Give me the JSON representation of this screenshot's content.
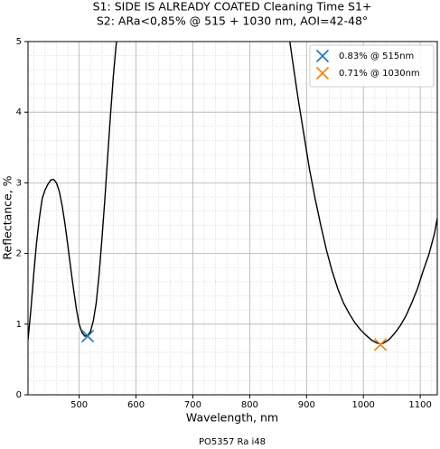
{
  "chart_data": {
    "type": "line",
    "title": "S1: SIDE IS ALREADY COATED      Cleaning Time S1+",
    "subtitle": "S2: ARa<0,85% @ 515 + 1030 nm, AOI=42-48°",
    "caption": "PO5357 Ra i48",
    "xlabel": "Wavelength, nm",
    "ylabel": "Reflectance, %",
    "xlim": [
      410,
      1130
    ],
    "ylim": [
      0,
      5
    ],
    "xticks": [
      500,
      600,
      700,
      800,
      900,
      1000,
      1100
    ],
    "yticks": [
      0,
      1,
      2,
      3,
      4,
      5
    ],
    "xminorticks": [
      420,
      440,
      460,
      480,
      520,
      540,
      560,
      580,
      620,
      640,
      660,
      680,
      720,
      740,
      760,
      780,
      820,
      840,
      860,
      880,
      920,
      940,
      960,
      980,
      1020,
      1040,
      1060,
      1080,
      1120
    ],
    "yminorticks": [
      0.2,
      0.4,
      0.6,
      0.8,
      1.2,
      1.4,
      1.6,
      1.8,
      2.2,
      2.4,
      2.6,
      2.8,
      3.2,
      3.4,
      3.6,
      3.8,
      4.2,
      4.4,
      4.6,
      4.8
    ],
    "grid": true,
    "legend": "upper right",
    "curve": {
      "color": "#000000",
      "x": [
        410,
        415,
        420,
        425,
        430,
        435,
        440,
        445,
        450,
        455,
        460,
        465,
        470,
        475,
        480,
        485,
        490,
        495,
        500,
        505,
        510,
        515,
        520,
        525,
        530,
        535,
        540,
        545,
        550,
        555,
        560,
        565,
        568,
        null,
        868,
        875,
        885,
        895,
        905,
        915,
        925,
        935,
        945,
        955,
        965,
        975,
        985,
        995,
        1005,
        1015,
        1025,
        1030,
        1035,
        1045,
        1055,
        1065,
        1075,
        1085,
        1095,
        1105,
        1115,
        1125,
        1130
      ],
      "values": [
        0.78,
        1.2,
        1.7,
        2.15,
        2.5,
        2.78,
        2.9,
        2.98,
        3.04,
        3.05,
        3.0,
        2.88,
        2.68,
        2.42,
        2.12,
        1.8,
        1.5,
        1.22,
        1.0,
        0.88,
        0.83,
        0.84,
        0.9,
        1.05,
        1.3,
        1.7,
        2.2,
        2.75,
        3.35,
        3.95,
        4.5,
        4.95,
        5.15,
        null,
        5.15,
        4.75,
        4.2,
        3.7,
        3.2,
        2.78,
        2.4,
        2.05,
        1.75,
        1.5,
        1.3,
        1.15,
        1.02,
        0.92,
        0.84,
        0.77,
        0.73,
        0.72,
        0.73,
        0.78,
        0.87,
        0.98,
        1.12,
        1.3,
        1.5,
        1.75,
        1.98,
        2.28,
        2.5
      ]
    },
    "series": [
      {
        "name": "0.83% @ 515nm",
        "color": "#1f77b4",
        "x": [
          515
        ],
        "values": [
          0.83
        ]
      },
      {
        "name": "0.71% @ 1030nm",
        "color": "#ff7f0e",
        "x": [
          1030
        ],
        "values": [
          0.71
        ]
      }
    ]
  }
}
